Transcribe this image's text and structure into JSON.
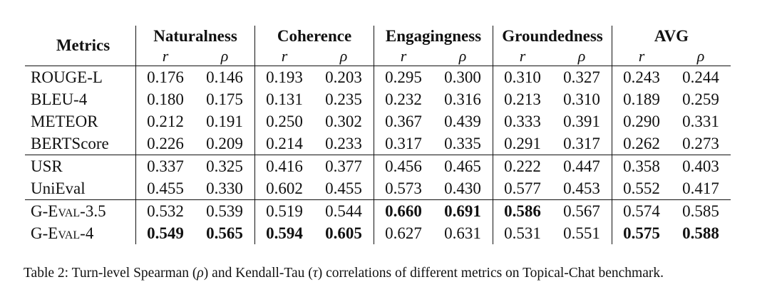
{
  "table": {
    "metrics_header": "Metrics",
    "groups": [
      "Naturalness",
      "Coherence",
      "Engagingness",
      "Groundedness",
      "AVG"
    ],
    "sub_r": "r",
    "sub_rho": "ρ",
    "rows": [
      {
        "metric": "ROUGE-L",
        "values": [
          "0.176",
          "0.146",
          "0.193",
          "0.203",
          "0.295",
          "0.300",
          "0.310",
          "0.327",
          "0.243",
          "0.244"
        ],
        "bold": []
      },
      {
        "metric": "BLEU-4",
        "values": [
          "0.180",
          "0.175",
          "0.131",
          "0.235",
          "0.232",
          "0.316",
          "0.213",
          "0.310",
          "0.189",
          "0.259"
        ],
        "bold": []
      },
      {
        "metric": "METEOR",
        "values": [
          "0.212",
          "0.191",
          "0.250",
          "0.302",
          "0.367",
          "0.439",
          "0.333",
          "0.391",
          "0.290",
          "0.331"
        ],
        "bold": []
      },
      {
        "metric": "BERTScore",
        "values": [
          "0.226",
          "0.209",
          "0.214",
          "0.233",
          "0.317",
          "0.335",
          "0.291",
          "0.317",
          "0.262",
          "0.273"
        ],
        "bold": []
      },
      {
        "metric": "USR",
        "values": [
          "0.337",
          "0.325",
          "0.416",
          "0.377",
          "0.456",
          "0.465",
          "0.222",
          "0.447",
          "0.358",
          "0.403"
        ],
        "bold": []
      },
      {
        "metric": "UniEval",
        "values": [
          "0.455",
          "0.330",
          "0.602",
          "0.455",
          "0.573",
          "0.430",
          "0.577",
          "0.453",
          "0.552",
          "0.417"
        ],
        "bold": []
      },
      {
        "metric": "G-Eval-3.5",
        "values": [
          "0.532",
          "0.539",
          "0.519",
          "0.544",
          "0.660",
          "0.691",
          "0.586",
          "0.567",
          "0.574",
          "0.585"
        ],
        "bold": [
          4,
          5,
          6
        ]
      },
      {
        "metric": "G-Eval-4",
        "values": [
          "0.549",
          "0.565",
          "0.594",
          "0.605",
          "0.627",
          "0.631",
          "0.531",
          "0.551",
          "0.575",
          "0.588"
        ],
        "bold": [
          0,
          1,
          2,
          3,
          8,
          9
        ]
      }
    ]
  },
  "caption": {
    "prefix": "Table 2: Turn-level Spearman (",
    "rho": "ρ",
    "middle": ") and Kendall-Tau (",
    "tau": "τ",
    "suffix": ") correlations of different metrics on Topical-Chat benchmark."
  }
}
